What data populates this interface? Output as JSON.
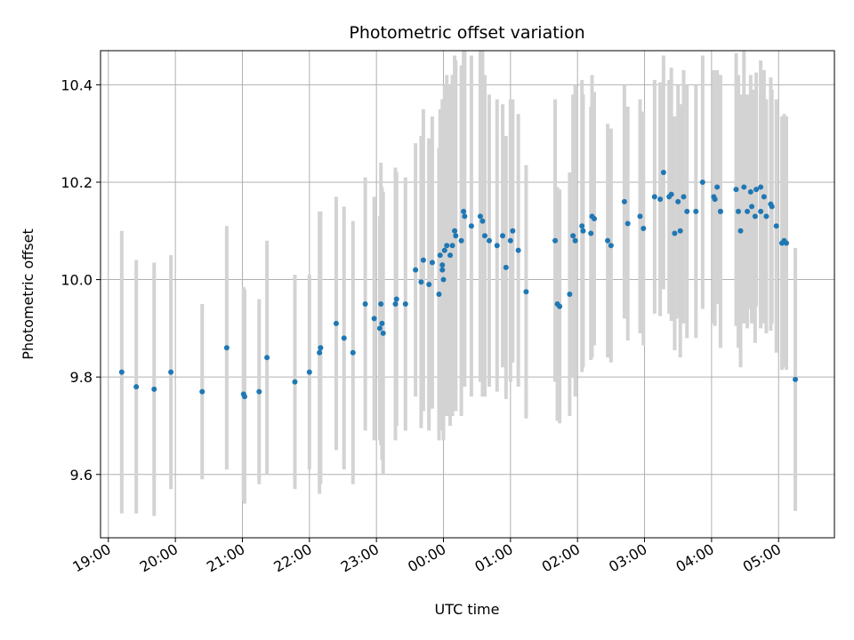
{
  "chart_data": {
    "type": "scatter",
    "title": "Photometric offset variation",
    "xlabel": "UTC time",
    "ylabel": "Photometric offset",
    "x_axis": {
      "min": "18:53",
      "max": "05:50",
      "ticks": [
        "19:00",
        "20:00",
        "21:00",
        "22:00",
        "23:00",
        "00:00",
        "01:00",
        "02:00",
        "03:00",
        "04:00",
        "05:00"
      ],
      "tick_label_rotation_deg": 30
    },
    "y_axis": {
      "min": 9.47,
      "max": 10.47,
      "ticks": [
        "9.6",
        "9.8",
        "10.0",
        "10.2",
        "10.4"
      ]
    },
    "grid": true,
    "colors": {
      "points": "#1f77b4",
      "error_bars": "#d3d3d3",
      "grid": "#b0b0b0"
    },
    "series": [
      {
        "x": [
          "19:12",
          "19:25",
          "19:41",
          "19:56",
          "20:24",
          "20:46",
          "21:01",
          "21:02",
          "21:15",
          "21:22",
          "21:47",
          "22:00",
          "22:09",
          "22:10",
          "22:24",
          "22:31",
          "22:39",
          "22:50",
          "22:58",
          "23:03",
          "23:04",
          "23:05",
          "23:06",
          "23:17",
          "23:18",
          "23:26",
          "23:35",
          "23:40",
          "23:42",
          "23:47",
          "23:50",
          "23:56",
          "23:57",
          "23:59",
          "23:59",
          "24:00",
          "24:01",
          "24:03",
          "24:06",
          "24:08",
          "24:10",
          "24:11",
          "24:16",
          "24:18",
          "24:19",
          "24:25",
          "24:33",
          "24:35",
          "24:37",
          "24:41",
          "24:48",
          "24:53",
          "24:56",
          "25:00",
          "25:02",
          "25:07",
          "25:14",
          "25:40",
          "25:42",
          "25:44",
          "25:53",
          "25:56",
          "25:58",
          "26:04",
          "26:05",
          "26:12",
          "26:13",
          "26:15",
          "26:27",
          "26:30",
          "26:42",
          "26:45",
          "26:56",
          "26:59",
          "27:09",
          "27:14",
          "27:17",
          "27:22",
          "27:24",
          "27:27",
          "27:30",
          "27:32",
          "27:35",
          "27:38",
          "27:46",
          "27:52",
          "28:02",
          "28:03",
          "28:05",
          "28:08",
          "28:08",
          "28:22",
          "28:24",
          "28:26",
          "28:29",
          "28:32",
          "28:35",
          "28:36",
          "28:39",
          "28:40",
          "28:44",
          "28:44",
          "28:47",
          "28:49",
          "28:53",
          "28:54",
          "28:58",
          "29:03",
          "29:05",
          "29:07",
          "29:15"
        ],
        "y": [
          9.81,
          9.78,
          9.775,
          9.81,
          9.77,
          9.86,
          9.765,
          9.76,
          9.77,
          9.84,
          9.79,
          9.81,
          9.85,
          9.86,
          9.91,
          9.88,
          9.85,
          9.95,
          9.92,
          9.9,
          9.95,
          9.91,
          9.89,
          9.95,
          9.96,
          9.95,
          10.02,
          9.995,
          10.04,
          9.99,
          10.035,
          9.97,
          10.05,
          10.02,
          10.03,
          10.0,
          10.06,
          10.07,
          10.05,
          10.07,
          10.1,
          10.09,
          10.08,
          10.14,
          10.13,
          10.11,
          10.13,
          10.12,
          10.09,
          10.08,
          10.07,
          10.09,
          10.025,
          10.08,
          10.1,
          10.06,
          9.975,
          10.08,
          9.95,
          9.945,
          9.97,
          10.09,
          10.08,
          10.11,
          10.1,
          10.095,
          10.13,
          10.125,
          10.08,
          10.07,
          10.16,
          10.115,
          10.13,
          10.105,
          10.17,
          10.165,
          10.22,
          10.17,
          10.175,
          10.095,
          10.16,
          10.1,
          10.17,
          10.14,
          10.14,
          10.2,
          10.17,
          10.165,
          10.19,
          10.14,
          10.14,
          10.185,
          10.14,
          10.1,
          10.19,
          10.14,
          10.18,
          10.15,
          10.13,
          10.185,
          10.14,
          10.19,
          10.17,
          10.13,
          10.155,
          10.15,
          10.11,
          10.075,
          10.08,
          10.075,
          9.795
        ],
        "err": [
          0.29,
          0.26,
          0.26,
          0.24,
          0.18,
          0.25,
          0.22,
          0.22,
          0.19,
          0.24,
          0.22,
          0.2,
          0.29,
          0.28,
          0.26,
          0.27,
          0.27,
          0.26,
          0.25,
          0.23,
          0.29,
          0.28,
          0.29,
          0.28,
          0.26,
          0.26,
          0.26,
          0.3,
          0.31,
          0.3,
          0.3,
          0.3,
          0.3,
          0.32,
          0.34,
          0.33,
          0.34,
          0.35,
          0.35,
          0.35,
          0.36,
          0.36,
          0.36,
          0.35,
          0.35,
          0.35,
          0.34,
          0.36,
          0.33,
          0.3,
          0.3,
          0.27,
          0.27,
          0.29,
          0.27,
          0.28,
          0.26,
          0.29,
          0.24,
          0.24,
          0.25,
          0.29,
          0.32,
          0.3,
          0.28,
          0.26,
          0.29,
          0.26,
          0.24,
          0.24,
          0.24,
          0.24,
          0.24,
          0.24,
          0.24,
          0.24,
          0.24,
          0.24,
          0.26,
          0.24,
          0.24,
          0.26,
          0.26,
          0.26,
          0.26,
          0.26,
          0.26,
          0.26,
          0.24,
          0.28,
          0.28,
          0.28,
          0.28,
          0.28,
          0.28,
          0.24,
          0.24,
          0.24,
          0.26,
          0.24,
          0.24,
          0.26,
          0.26,
          0.24,
          0.26,
          0.24,
          0.26,
          0.26,
          0.26,
          0.26,
          0.27
        ]
      }
    ]
  }
}
